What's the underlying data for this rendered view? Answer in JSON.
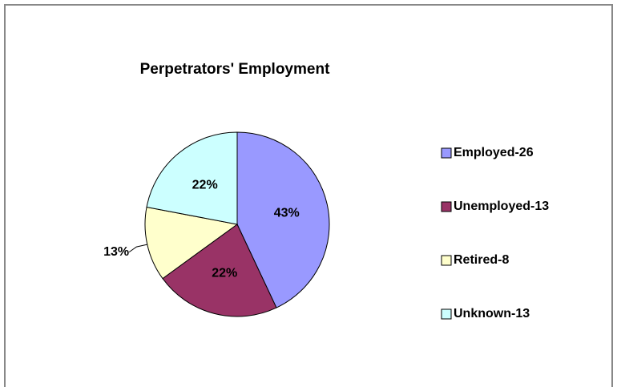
{
  "chart_data": {
    "type": "pie",
    "title": "Perpetrators' Employment",
    "categories": [
      "Employed-26",
      "Unemployed-13",
      "Retired-8",
      "Unknown-13"
    ],
    "values": [
      43,
      22,
      13,
      22
    ],
    "value_labels": [
      "43%",
      "22%",
      "13%",
      "22%"
    ],
    "colors": [
      "#9999ff",
      "#993366",
      "#ffffcc",
      "#ccffff"
    ],
    "legend": "right"
  }
}
